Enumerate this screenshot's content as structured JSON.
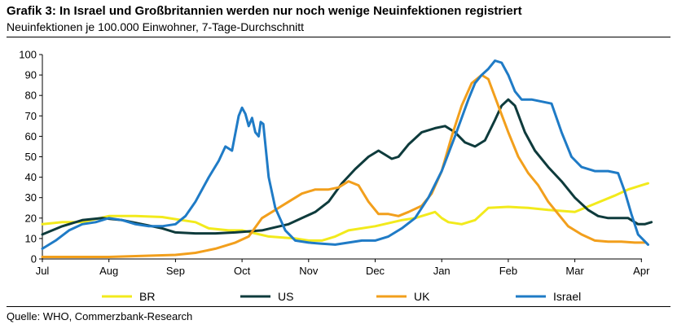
{
  "title": "Grafik 3: In Israel und Großbritannien werden nur noch wenige Neuinfektionen registriert",
  "subtitle": "Neuinfektionen je 100.000 Einwohner, 7-Tage-Durchschnitt",
  "source": "Quelle: WHO, Commerzbank-Research",
  "chart_data": {
    "type": "line",
    "title": "Grafik 3: In Israel und Großbritannien werden nur noch wenige Neuinfektionen registriert",
    "subtitle": "Neuinfektionen je 100.000 Einwohner, 7-Tage-Durchschnitt",
    "x_unit": "months since 1 Jul 2020",
    "xlim": [
      0,
      9.1
    ],
    "ylim": [
      0,
      100
    ],
    "y_ticks": [
      0,
      10,
      20,
      30,
      40,
      50,
      60,
      70,
      80,
      90,
      100
    ],
    "x_ticks": [
      0,
      1,
      2,
      3,
      4,
      5,
      6,
      7,
      8,
      9
    ],
    "x_tick_labels": [
      "Jul",
      "Aug",
      "Sep",
      "Oct",
      "Nov",
      "Dec",
      "Jan",
      "Feb",
      "Mar",
      "Apr"
    ],
    "grid": false,
    "legend_position": "bottom",
    "series": [
      {
        "name": "BR",
        "color": "#f2ea1c",
        "points": [
          [
            0,
            17
          ],
          [
            0.3,
            18
          ],
          [
            0.6,
            18
          ],
          [
            1,
            21
          ],
          [
            1.4,
            21
          ],
          [
            1.8,
            20.5
          ],
          [
            2,
            19.5
          ],
          [
            2.3,
            18
          ],
          [
            2.5,
            15
          ],
          [
            2.8,
            14
          ],
          [
            3,
            14
          ],
          [
            3.2,
            12.5
          ],
          [
            3.4,
            11
          ],
          [
            3.6,
            10.5
          ],
          [
            3.8,
            10
          ],
          [
            4,
            9
          ],
          [
            4.2,
            9
          ],
          [
            4.4,
            11
          ],
          [
            4.6,
            14
          ],
          [
            5,
            16
          ],
          [
            5.4,
            19
          ],
          [
            5.6,
            20
          ],
          [
            5.8,
            22
          ],
          [
            5.9,
            23
          ],
          [
            6,
            20
          ],
          [
            6.1,
            18
          ],
          [
            6.3,
            17
          ],
          [
            6.5,
            19
          ],
          [
            6.7,
            25
          ],
          [
            7,
            25.5
          ],
          [
            7.3,
            25
          ],
          [
            7.6,
            24
          ],
          [
            8,
            23
          ],
          [
            8.3,
            27
          ],
          [
            8.6,
            31
          ],
          [
            8.8,
            34
          ],
          [
            9,
            36
          ],
          [
            9.1,
            37
          ]
        ]
      },
      {
        "name": "US",
        "color": "#0e3b3c",
        "points": [
          [
            0,
            12
          ],
          [
            0.3,
            16
          ],
          [
            0.6,
            19
          ],
          [
            0.9,
            20
          ],
          [
            1.2,
            19
          ],
          [
            1.5,
            17
          ],
          [
            1.8,
            15
          ],
          [
            2,
            13
          ],
          [
            2.3,
            12.5
          ],
          [
            2.6,
            12.5
          ],
          [
            2.9,
            13
          ],
          [
            3.1,
            13.5
          ],
          [
            3.3,
            14
          ],
          [
            3.5,
            15.5
          ],
          [
            3.7,
            17
          ],
          [
            3.9,
            20
          ],
          [
            4.1,
            23
          ],
          [
            4.3,
            28
          ],
          [
            4.5,
            37
          ],
          [
            4.7,
            44
          ],
          [
            4.9,
            50
          ],
          [
            5.05,
            53
          ],
          [
            5.15,
            51
          ],
          [
            5.25,
            49
          ],
          [
            5.35,
            50
          ],
          [
            5.5,
            56
          ],
          [
            5.7,
            62
          ],
          [
            5.9,
            64
          ],
          [
            6.05,
            65
          ],
          [
            6.2,
            62
          ],
          [
            6.35,
            57
          ],
          [
            6.5,
            55
          ],
          [
            6.65,
            58
          ],
          [
            6.8,
            68
          ],
          [
            6.9,
            75
          ],
          [
            7,
            78
          ],
          [
            7.1,
            75
          ],
          [
            7.25,
            62
          ],
          [
            7.4,
            53
          ],
          [
            7.6,
            45
          ],
          [
            7.8,
            38
          ],
          [
            8,
            30
          ],
          [
            8.2,
            24
          ],
          [
            8.35,
            21
          ],
          [
            8.5,
            20
          ],
          [
            8.65,
            20
          ],
          [
            8.8,
            20
          ],
          [
            8.95,
            17
          ],
          [
            9.05,
            17
          ],
          [
            9.15,
            18
          ]
        ]
      },
      {
        "name": "UK",
        "color": "#f29f1c",
        "points": [
          [
            0,
            1
          ],
          [
            0.5,
            1
          ],
          [
            1,
            1
          ],
          [
            1.5,
            1.5
          ],
          [
            2,
            2
          ],
          [
            2.3,
            3
          ],
          [
            2.6,
            5
          ],
          [
            2.9,
            8
          ],
          [
            3.1,
            11
          ],
          [
            3.3,
            20
          ],
          [
            3.5,
            24
          ],
          [
            3.7,
            28
          ],
          [
            3.9,
            32
          ],
          [
            4.1,
            34
          ],
          [
            4.3,
            34
          ],
          [
            4.45,
            35
          ],
          [
            4.6,
            38
          ],
          [
            4.75,
            36
          ],
          [
            4.9,
            28
          ],
          [
            5.05,
            22
          ],
          [
            5.2,
            22
          ],
          [
            5.35,
            21
          ],
          [
            5.5,
            23
          ],
          [
            5.7,
            26
          ],
          [
            5.85,
            32
          ],
          [
            6,
            43
          ],
          [
            6.15,
            60
          ],
          [
            6.3,
            75
          ],
          [
            6.45,
            86
          ],
          [
            6.6,
            90
          ],
          [
            6.7,
            88
          ],
          [
            6.85,
            75
          ],
          [
            7,
            62
          ],
          [
            7.15,
            50
          ],
          [
            7.3,
            42
          ],
          [
            7.45,
            36
          ],
          [
            7.6,
            28
          ],
          [
            7.75,
            22
          ],
          [
            7.9,
            16
          ],
          [
            8.1,
            12
          ],
          [
            8.3,
            9
          ],
          [
            8.5,
            8.5
          ],
          [
            8.7,
            8.5
          ],
          [
            8.9,
            8
          ],
          [
            9.05,
            8
          ]
        ]
      },
      {
        "name": "Israel",
        "color": "#1f7bc6",
        "points": [
          [
            0,
            5
          ],
          [
            0.2,
            9
          ],
          [
            0.4,
            14
          ],
          [
            0.6,
            17
          ],
          [
            0.8,
            18
          ],
          [
            1,
            20
          ],
          [
            1.2,
            19
          ],
          [
            1.4,
            17
          ],
          [
            1.6,
            16
          ],
          [
            1.8,
            16
          ],
          [
            2,
            17
          ],
          [
            2.15,
            21
          ],
          [
            2.3,
            28
          ],
          [
            2.5,
            40
          ],
          [
            2.65,
            48
          ],
          [
            2.75,
            55
          ],
          [
            2.85,
            53
          ],
          [
            2.95,
            70
          ],
          [
            3,
            74
          ],
          [
            3.05,
            71
          ],
          [
            3.1,
            65
          ],
          [
            3.15,
            69
          ],
          [
            3.2,
            62
          ],
          [
            3.25,
            60
          ],
          [
            3.28,
            67
          ],
          [
            3.32,
            66
          ],
          [
            3.4,
            40
          ],
          [
            3.5,
            25
          ],
          [
            3.65,
            14
          ],
          [
            3.8,
            9
          ],
          [
            4,
            8
          ],
          [
            4.2,
            7.5
          ],
          [
            4.4,
            7
          ],
          [
            4.6,
            8
          ],
          [
            4.8,
            9
          ],
          [
            5,
            9
          ],
          [
            5.2,
            11
          ],
          [
            5.4,
            15
          ],
          [
            5.6,
            20
          ],
          [
            5.8,
            30
          ],
          [
            6,
            43
          ],
          [
            6.2,
            60
          ],
          [
            6.4,
            78
          ],
          [
            6.5,
            86
          ],
          [
            6.6,
            90
          ],
          [
            6.7,
            93
          ],
          [
            6.8,
            97
          ],
          [
            6.9,
            96
          ],
          [
            7,
            90
          ],
          [
            7.1,
            82
          ],
          [
            7.2,
            78
          ],
          [
            7.35,
            78
          ],
          [
            7.5,
            77
          ],
          [
            7.65,
            76
          ],
          [
            7.8,
            62
          ],
          [
            7.95,
            50
          ],
          [
            8.1,
            45
          ],
          [
            8.3,
            43
          ],
          [
            8.5,
            43
          ],
          [
            8.65,
            42
          ],
          [
            8.75,
            33
          ],
          [
            8.85,
            22
          ],
          [
            8.95,
            12
          ],
          [
            9.1,
            7
          ]
        ]
      }
    ]
  }
}
